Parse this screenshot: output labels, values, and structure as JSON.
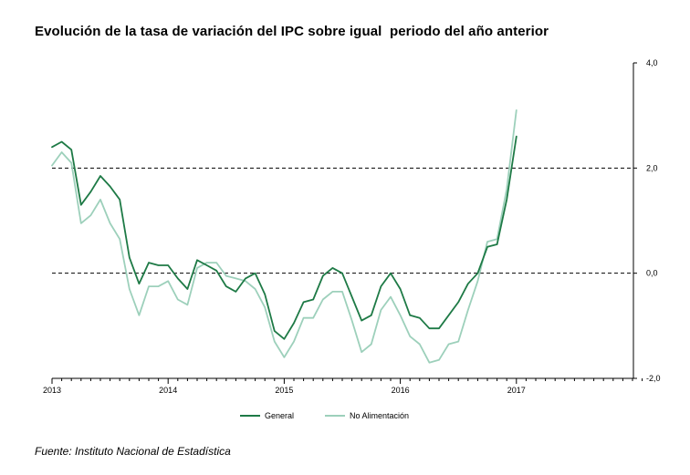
{
  "title": "Evolución de la tasa de variación del IPC sobre igual  periodo del año anterior",
  "source": "Fuente: Instituto Nacional de Estadística",
  "chart_data": {
    "type": "line",
    "title": "Evolución de la tasa de variación del IPC sobre igual  periodo del año anterior",
    "xlabel": "",
    "ylabel": "",
    "x_tick_labels": [
      "2013",
      "2014",
      "2015",
      "2016",
      "2017"
    ],
    "x_tick_months": [
      0,
      12,
      24,
      36,
      48
    ],
    "y_tick_labels": [
      "4,0",
      "2,0",
      "0,0",
      "-2,0"
    ],
    "y_tick_values": [
      4.0,
      2.0,
      0.0,
      -2.0
    ],
    "ylim": [
      -2.0,
      4.0
    ],
    "xlim_months": [
      0,
      61
    ],
    "dashed_reference_lines": [
      2.0,
      0.0
    ],
    "y_axis_side": "right",
    "legend_position": "bottom",
    "grid": false,
    "x_months": [
      0,
      1,
      2,
      3,
      4,
      5,
      6,
      7,
      8,
      9,
      10,
      11,
      12,
      13,
      14,
      15,
      16,
      17,
      18,
      19,
      20,
      21,
      22,
      23,
      24,
      25,
      26,
      27,
      28,
      29,
      30,
      31,
      32,
      33,
      34,
      35,
      36,
      37,
      38,
      39,
      40,
      41,
      42,
      43,
      44,
      45,
      46,
      47,
      48
    ],
    "series": [
      {
        "name": "General",
        "color": "#1e7a46",
        "values": [
          2.4,
          2.5,
          2.35,
          1.3,
          1.55,
          1.85,
          1.65,
          1.4,
          0.3,
          -0.2,
          0.2,
          0.15,
          0.15,
          -0.1,
          -0.3,
          0.25,
          0.15,
          0.05,
          -0.25,
          -0.35,
          -0.1,
          0.0,
          -0.4,
          -1.1,
          -1.25,
          -0.95,
          -0.55,
          -0.5,
          -0.05,
          0.1,
          -0.0,
          -0.45,
          -0.9,
          -0.8,
          -0.25,
          0.0,
          -0.3,
          -0.8,
          -0.85,
          -1.05,
          -1.05,
          -0.8,
          -0.55,
          -0.2,
          0.0,
          0.5,
          0.55,
          1.4,
          2.6
        ]
      },
      {
        "name": "No Alimentación",
        "color": "#9dd0bb",
        "values": [
          2.05,
          2.3,
          2.1,
          0.95,
          1.1,
          1.4,
          0.95,
          0.65,
          -0.3,
          -0.8,
          -0.25,
          -0.25,
          -0.15,
          -0.5,
          -0.6,
          0.1,
          0.2,
          0.2,
          -0.05,
          -0.1,
          -0.15,
          -0.3,
          -0.65,
          -1.3,
          -1.6,
          -1.3,
          -0.85,
          -0.85,
          -0.5,
          -0.35,
          -0.35,
          -0.9,
          -1.5,
          -1.35,
          -0.7,
          -0.45,
          -0.8,
          -1.2,
          -1.35,
          -1.7,
          -1.65,
          -1.35,
          -1.3,
          -0.7,
          -0.15,
          0.6,
          0.65,
          1.6,
          3.1
        ]
      }
    ]
  }
}
